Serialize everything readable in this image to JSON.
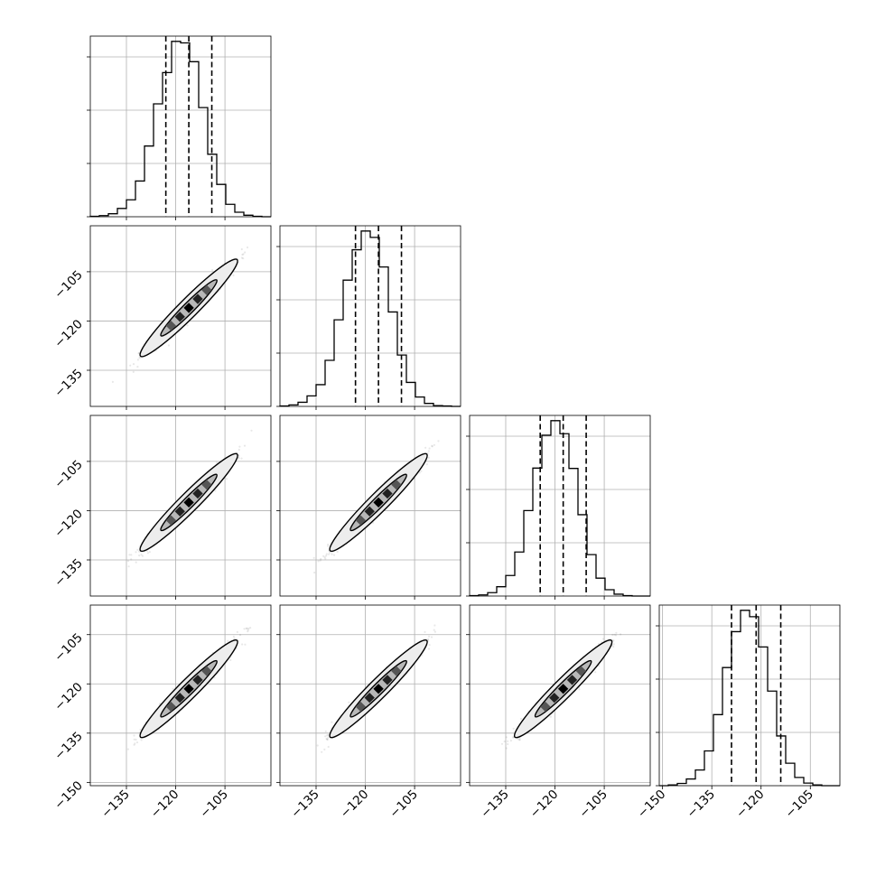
{
  "chart_data": {
    "type": "corner",
    "parameters": 4,
    "tick_labels": {
      "x_hist_1_3": [
        "−135",
        "−120",
        "−105"
      ],
      "x_hist_4": [
        "−150",
        "−135",
        "−120",
        "−105"
      ],
      "y_2_3": [
        "−105",
        "−120",
        "−135"
      ],
      "y_4": [
        "−105",
        "−120",
        "−135",
        "−150"
      ]
    },
    "axis_ranges": {
      "params_1_3": [
        -146,
        -91
      ],
      "param_4": [
        -151,
        -96
      ]
    },
    "grid": true,
    "histograms": [
      {
        "param": 1,
        "bin_edges": [
          -146,
          -143.25,
          -140.5,
          -137.75,
          -135,
          -132.25,
          -129.5,
          -126.75,
          -124,
          -121.25,
          -118.5,
          -115.75,
          -113,
          -110.25,
          -107.5,
          -104.75,
          -102,
          -99.25,
          -96.5,
          -93.75,
          -91
        ],
        "counts": [
          1,
          3,
          8,
          22,
          45,
          95,
          188,
          300,
          383,
          466,
          462,
          412,
          290,
          166,
          86,
          33,
          12,
          4,
          1,
          0
        ],
        "quantiles": [
          -123,
          -116,
          -109
        ]
      },
      {
        "param": 2,
        "bin_edges": [
          -146,
          -143.25,
          -140.5,
          -137.75,
          -135,
          -132.25,
          -129.5,
          -126.75,
          -124,
          -121.25,
          -118.5,
          -115.75,
          -113,
          -110.25,
          -107.5,
          -104.75,
          -102,
          -99.25,
          -96.5,
          -93.75,
          -91
        ],
        "counts": [
          1,
          4,
          11,
          28,
          58,
          123,
          231,
          337,
          418,
          468,
          451,
          372,
          252,
          137,
          64,
          25,
          8,
          2,
          1,
          0
        ],
        "quantiles": [
          -123,
          -116,
          -109
        ]
      },
      {
        "param": 3,
        "bin_edges": [
          -146,
          -143.25,
          -140.5,
          -137.75,
          -135,
          -132.25,
          -129.5,
          -126.75,
          -124,
          -121.25,
          -118.5,
          -115.75,
          -113,
          -110.25,
          -107.5,
          -104.75,
          -102,
          -99.25,
          -96.5,
          -93.75,
          -91
        ],
        "counts": [
          1,
          3,
          9,
          25,
          55,
          118,
          229,
          343,
          431,
          470,
          435,
          342,
          218,
          111,
          48,
          17,
          5,
          1,
          0,
          0
        ],
        "quantiles": [
          -124.5,
          -117.5,
          -110.5
        ]
      },
      {
        "param": 4,
        "bin_edges": [
          -151,
          -148.25,
          -145.5,
          -142.75,
          -140,
          -137.25,
          -134.5,
          -131.75,
          -129,
          -126.25,
          -123.5,
          -120.75,
          -118,
          -115.25,
          -112.5,
          -109.75,
          -107,
          -104.25,
          -101.5,
          -98.75,
          -96
        ],
        "counts": [
          0,
          2,
          6,
          18,
          42,
          93,
          190,
          316,
          412,
          469,
          452,
          371,
          253,
          133,
          60,
          22,
          7,
          2,
          0,
          0
        ],
        "quantiles": [
          -129,
          -121.5,
          -114
        ]
      }
    ],
    "pairs": [
      {
        "row": 2,
        "col": 1,
        "center": [
          -116,
          -116
        ],
        "sigma_along": 8,
        "sigma_across": 0.9
      },
      {
        "row": 3,
        "col": 1,
        "center": [
          -116,
          -117.5
        ],
        "sigma_along": 8,
        "sigma_across": 0.9
      },
      {
        "row": 3,
        "col": 2,
        "center": [
          -116,
          -117.5
        ],
        "sigma_along": 8,
        "sigma_across": 0.9
      },
      {
        "row": 4,
        "col": 1,
        "center": [
          -116,
          -121.5
        ],
        "sigma_along": 8,
        "sigma_across": 0.9
      },
      {
        "row": 4,
        "col": 2,
        "center": [
          -116,
          -121.5
        ],
        "sigma_along": 8,
        "sigma_across": 0.9
      },
      {
        "row": 4,
        "col": 3,
        "center": [
          -117.5,
          -121.5
        ],
        "sigma_along": 8,
        "sigma_across": 0.9
      }
    ]
  }
}
